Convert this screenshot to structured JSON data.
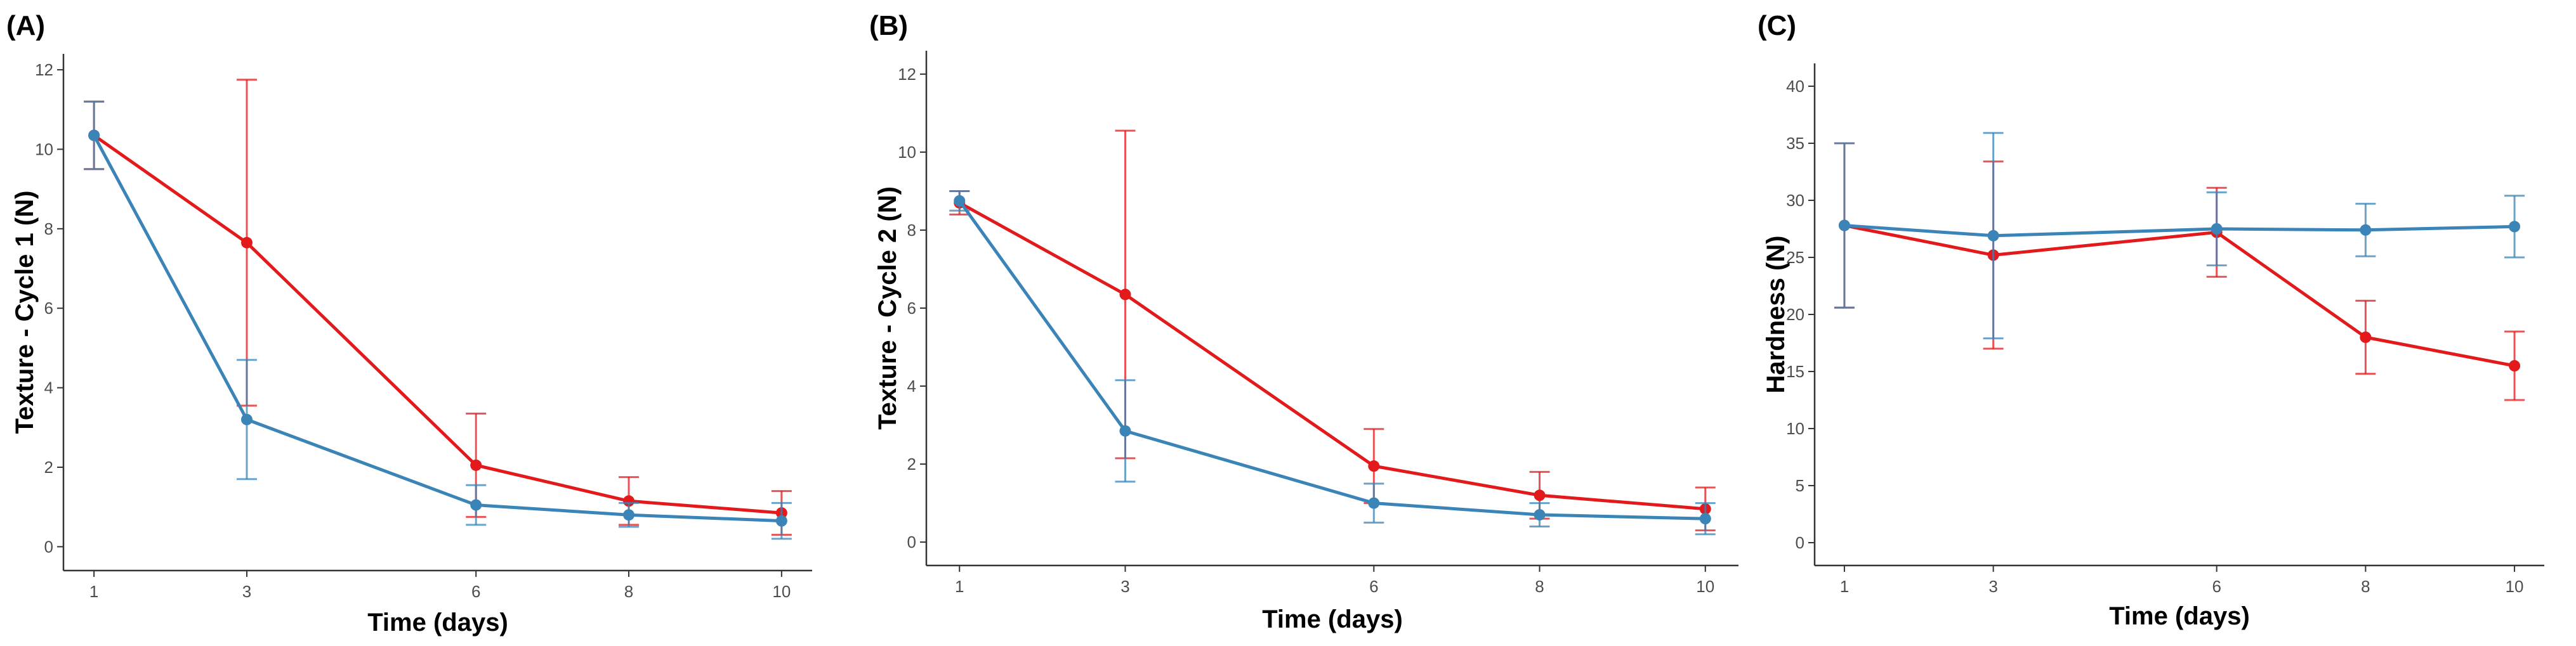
{
  "colors": {
    "red": "#e31a1c",
    "blue": "#3b84b8",
    "axis": "#333333",
    "tick_text": "#4d4d4d"
  },
  "chart_data": [
    {
      "type": "line",
      "panel_label": "(A)",
      "xlabel": "Time (days)",
      "ylabel": "Texture - Cycle 1 (N)",
      "x": [
        1,
        3,
        6,
        8,
        10
      ],
      "xticks": [
        1,
        3,
        6,
        8,
        10
      ],
      "xlim": [
        0.6,
        10.4
      ],
      "yticks": [
        0,
        2,
        4,
        6,
        8,
        10,
        12
      ],
      "ylim": [
        -0.6,
        12.4
      ],
      "grid": false,
      "series": [
        {
          "name": "red",
          "color": "#e31a1c",
          "values": [
            10.35,
            7.65,
            2.05,
            1.15,
            0.85
          ],
          "error": [
            0.85,
            4.1,
            1.3,
            0.6,
            0.55
          ]
        },
        {
          "name": "blue",
          "color": "#3b84b8",
          "values": [
            10.35,
            3.2,
            1.05,
            0.8,
            0.65
          ],
          "error": [
            0.85,
            1.5,
            0.5,
            0.3,
            0.45
          ]
        }
      ]
    },
    {
      "type": "line",
      "panel_label": "(B)",
      "xlabel": "Time (days)",
      "ylabel": "Texture - Cycle 2 (N)",
      "x": [
        1,
        3,
        6,
        8,
        10
      ],
      "xticks": [
        1,
        3,
        6,
        8,
        10
      ],
      "xlim": [
        0.6,
        10.4
      ],
      "yticks": [
        0,
        2,
        4,
        6,
        8,
        10,
        12
      ],
      "ylim": [
        -0.6,
        12.6
      ],
      "grid": false,
      "series": [
        {
          "name": "red",
          "color": "#e31a1c",
          "values": [
            8.7,
            6.35,
            1.95,
            1.2,
            0.85
          ],
          "error": [
            0.3,
            4.2,
            0.95,
            0.6,
            0.55
          ]
        },
        {
          "name": "blue",
          "color": "#3b84b8",
          "values": [
            8.75,
            2.85,
            1.0,
            0.7,
            0.6
          ],
          "error": [
            0.25,
            1.3,
            0.5,
            0.3,
            0.4
          ]
        }
      ]
    },
    {
      "type": "line",
      "panel_label": "(C)",
      "xlabel": "Time (days)",
      "ylabel": "Hardness (N)",
      "x": [
        1,
        3,
        6,
        8,
        10
      ],
      "xticks": [
        1,
        3,
        6,
        8,
        10
      ],
      "xlim": [
        0.6,
        10.4
      ],
      "yticks": [
        0,
        5,
        10,
        15,
        20,
        25,
        30,
        35,
        40
      ],
      "ylim": [
        -2,
        42
      ],
      "grid": false,
      "series": [
        {
          "name": "red",
          "color": "#e31a1c",
          "values": [
            27.8,
            25.2,
            27.2,
            18.0,
            15.5
          ],
          "error": [
            7.2,
            8.2,
            3.9,
            3.2,
            3.0
          ]
        },
        {
          "name": "blue",
          "color": "#3b84b8",
          "values": [
            27.8,
            26.9,
            27.5,
            27.4,
            27.7
          ],
          "error": [
            7.2,
            9.0,
            3.2,
            2.3,
            2.7
          ]
        }
      ]
    }
  ]
}
